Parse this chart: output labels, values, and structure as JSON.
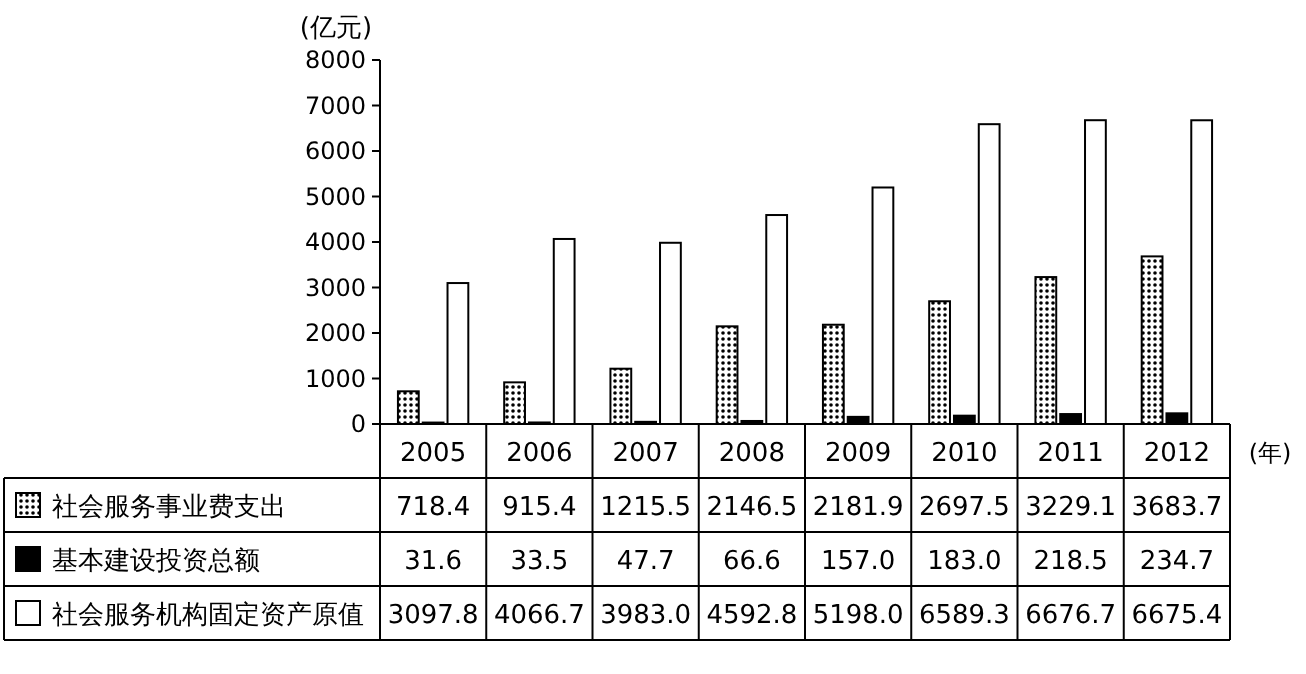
{
  "chart_data": {
    "type": "bar",
    "ylabel": "(亿元)",
    "xlabel": "(年)",
    "categories": [
      "2005",
      "2006",
      "2007",
      "2008",
      "2009",
      "2010",
      "2011",
      "2012"
    ],
    "series": [
      {
        "name": "社会服务事业费支出",
        "color": "#000000",
        "values": [
          718.4,
          915.4,
          1215.5,
          2146.5,
          2181.9,
          2697.5,
          3229.1,
          3683.7
        ],
        "value_labels": [
          "718.4",
          "915.4",
          "1215.5",
          "2146.5",
          "2181.9",
          "2697.5",
          "3229.1",
          "3683.7"
        ]
      },
      {
        "name": "基本建设投资总额",
        "color": "#000000",
        "values": [
          31.6,
          33.5,
          47.7,
          66.6,
          157.0,
          183.0,
          218.5,
          234.7
        ],
        "value_labels": [
          "31.6",
          "33.5",
          "47.7",
          "66.6",
          "157.0",
          "183.0",
          "218.5",
          "234.7"
        ]
      },
      {
        "name": "社会服务机构固定资产原值",
        "color": "#ffffff",
        "values": [
          3097.8,
          4066.7,
          3983.0,
          4592.8,
          5198.0,
          6589.3,
          6676.7,
          6675.4
        ],
        "value_labels": [
          "3097.8",
          "4066.7",
          "3983.0",
          "4592.8",
          "5198.0",
          "6589.3",
          "6676.7",
          "6675.4"
        ]
      }
    ],
    "ylim": [
      0,
      8000
    ],
    "yticks": [
      0,
      1000,
      2000,
      3000,
      4000,
      5000,
      6000,
      7000,
      8000
    ],
    "legend": "bottom",
    "grid": false
  }
}
